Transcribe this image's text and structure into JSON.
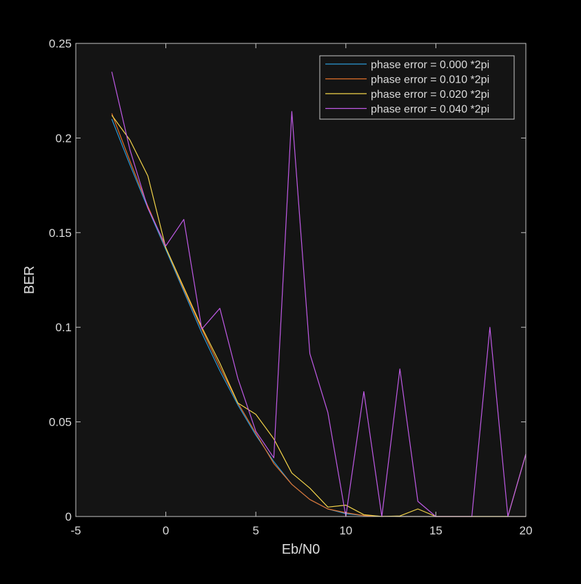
{
  "chart_data": {
    "type": "line",
    "xlabel": "Eb/N0",
    "ylabel": "BER",
    "xlim": [
      -5,
      20
    ],
    "ylim": [
      0,
      0.25
    ],
    "xticks": [
      -5,
      0,
      5,
      10,
      15,
      20
    ],
    "yticks": [
      0,
      0.05,
      0.1,
      0.15,
      0.2,
      0.25
    ],
    "xtick_labels": [
      "-5",
      "0",
      "5",
      "10",
      "15",
      "20"
    ],
    "ytick_labels": [
      "0",
      "0.05",
      "0.1",
      "0.15",
      "0.2",
      "0.25"
    ],
    "grid": false,
    "legend_position": "top-right",
    "background": "#141414",
    "axis_color": "#c8c8c8",
    "series": [
      {
        "name": "phase error = 0.000 *2pi",
        "color": "#2b9ad8",
        "x": [
          -3,
          -2,
          -1,
          0,
          1,
          2,
          3,
          4,
          5,
          6,
          7,
          8,
          9,
          10,
          11,
          12,
          13,
          14,
          15,
          16,
          17,
          18,
          19,
          20
        ],
        "y": [
          0.21,
          0.186,
          0.163,
          0.141,
          0.119,
          0.097,
          0.077,
          0.059,
          0.043,
          0.029,
          0.017,
          0.009,
          0.004,
          0.0015,
          0.0005,
          0.0001,
          0,
          0,
          0,
          0,
          0,
          0,
          0,
          0
        ]
      },
      {
        "name": "phase error = 0.010 *2pi",
        "color": "#e3702a",
        "x": [
          -3,
          -2,
          -1,
          0,
          1,
          2,
          3,
          4,
          5,
          6,
          7,
          8,
          9,
          10,
          11,
          12,
          13,
          14,
          15,
          16,
          17,
          18,
          19,
          20
        ],
        "y": [
          0.213,
          0.188,
          0.164,
          0.142,
          0.12,
          0.099,
          0.079,
          0.06,
          0.044,
          0.028,
          0.017,
          0.009,
          0.004,
          0.002,
          0.0005,
          0.0001,
          0,
          0,
          0,
          0,
          0,
          0,
          0,
          0
        ]
      },
      {
        "name": "phase error = 0.020 *2pi",
        "color": "#f5d64a",
        "x": [
          -3,
          -2,
          -1,
          0,
          1,
          2,
          3,
          4,
          5,
          6,
          7,
          8,
          9,
          10,
          11,
          12,
          13,
          14,
          15,
          16,
          17,
          18,
          19,
          20
        ],
        "y": [
          0.212,
          0.199,
          0.18,
          0.142,
          0.121,
          0.1,
          0.081,
          0.06,
          0.054,
          0.041,
          0.023,
          0.015,
          0.005,
          0.006,
          0.001,
          0,
          0.0003,
          0.004,
          0,
          0,
          0,
          0,
          0,
          0.033
        ]
      },
      {
        "name": "phase error = 0.040 *2pi",
        "color": "#c15be8",
        "x": [
          -3,
          -2,
          -1,
          0,
          1,
          2,
          3,
          4,
          5,
          6,
          7,
          8,
          9,
          10,
          11,
          12,
          13,
          14,
          15,
          16,
          17,
          18,
          19,
          20
        ],
        "y": [
          0.235,
          0.194,
          0.163,
          0.143,
          0.157,
          0.099,
          0.11,
          0.073,
          0.045,
          0.031,
          0.214,
          0.086,
          0.055,
          0,
          0.066,
          0,
          0.078,
          0.008,
          0,
          0,
          0,
          0.1,
          0,
          0.033
        ]
      }
    ]
  }
}
